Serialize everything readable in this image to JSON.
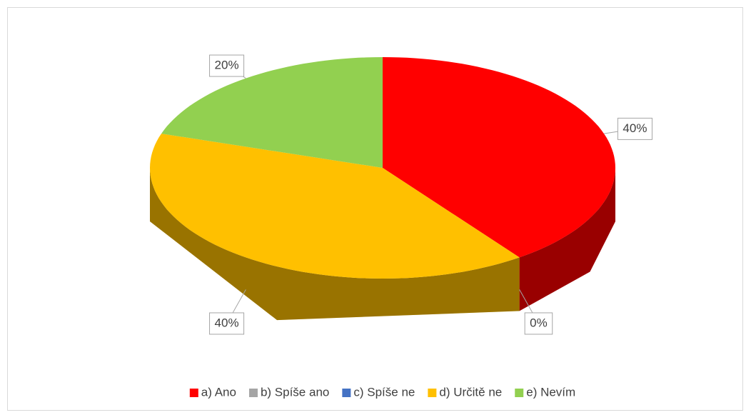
{
  "chart_data": {
    "type": "pie",
    "categories": [
      "a) Ano",
      "b) Spíše ano",
      "c) Spíše ne",
      "d) Určitě ne",
      "e) Nevím"
    ],
    "values": [
      40,
      0,
      0,
      40,
      20
    ],
    "value_labels": [
      "40%",
      "0%",
      null,
      "40%",
      "20%"
    ],
    "colors": [
      "#ff0000",
      "#a5a5a5",
      "#4472c4",
      "#ffc000",
      "#92d050"
    ],
    "legend": "bottom"
  }
}
